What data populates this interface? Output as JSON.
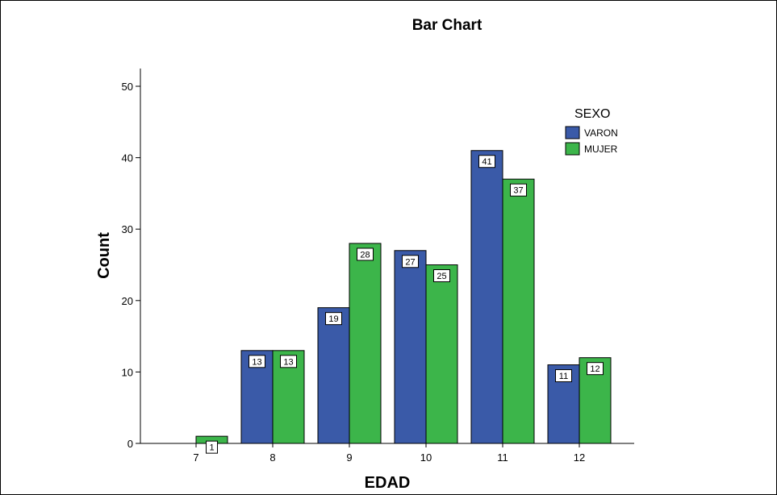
{
  "chart_data": {
    "type": "bar",
    "title": "Bar Chart",
    "xlabel": "EDAD",
    "ylabel": "Count",
    "categories": [
      "7",
      "8",
      "9",
      "10",
      "11",
      "12"
    ],
    "series": [
      {
        "name": "VARON",
        "values": [
          0,
          13,
          19,
          27,
          41,
          11
        ],
        "labels": [
          "",
          "13",
          "19",
          "27",
          "41",
          "11"
        ],
        "color": "#3a5aa8"
      },
      {
        "name": "MUJER",
        "values": [
          1,
          13,
          28,
          25,
          37,
          12
        ],
        "labels": [
          "1",
          "13",
          "28",
          "25",
          "37",
          "12"
        ],
        "color": "#3cb54a"
      }
    ],
    "ylim": [
      0,
      50
    ],
    "yticks": [
      0,
      10,
      20,
      30,
      40,
      50
    ],
    "grid": false,
    "legend": {
      "title": "SEXO",
      "placement": "top-right"
    }
  }
}
